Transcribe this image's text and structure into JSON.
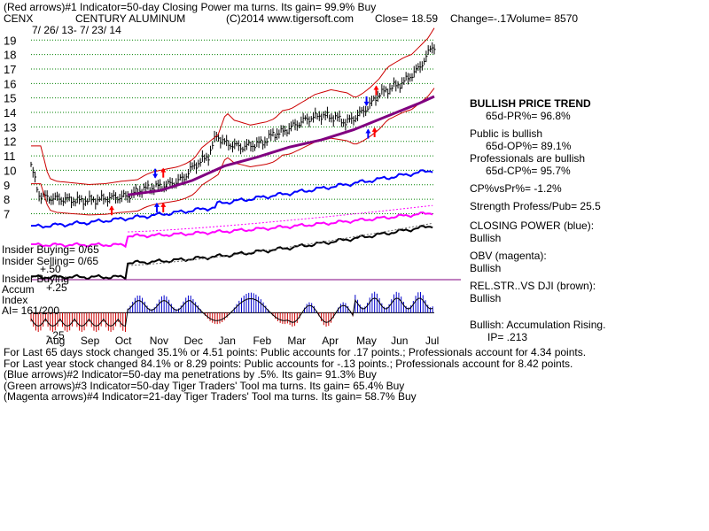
{
  "header": {
    "line1": "(Red arrows)#1 Indicator=50-day Closing Power ma turns. Its gain= 99.9% Buy",
    "ticker": "CENX",
    "company": "CENTURY ALUMINUM",
    "copyright": "(C)2014 www.tigersoft.com",
    "close": "Close=  18.59",
    "change": "Change=-.17",
    "volume": "Volume= 8570",
    "date_range": "7/ 26/ 13-  7/ 23/ 14"
  },
  "labels": {
    "insider_buying": "Insider Buying= 0/65",
    "insider_selling": "Insider Selling= 0/65",
    "insider_buying2": "Insider Buying",
    "accum": "Accum",
    "index": "Index",
    "ai": "AI= 161/200",
    "acc_top": "+.50",
    "acc_mid": "+.25",
    "acc_bot": "-.25"
  },
  "panel": {
    "trend_title": "BULLISH PRICE TREND",
    "trend_val": "65d-PR%= 96.8%",
    "public_title": "Public is bullish",
    "public_val": "65d-OP%= 89.1%",
    "pro_title": "Professionals are bullish",
    "pro_val": "65d-CP%= 95.7%",
    "cpvs": "CP%vsPr%= -1.2%",
    "strength": "Strength Profess/Pub= 25.5",
    "cp_title": "CLOSING POWER (blue):",
    "cp_val": "Bullish",
    "obv_title": "OBV (magenta):",
    "obv_val": "Bullish",
    "rel_title": "REL.STR..VS DJI (brown):",
    "rel_val": "Bullish",
    "accum_title": "Bullish: Accumulation Rising.",
    "ip": "IP=  .213"
  },
  "footer": [
    "For Last 65 days stock changed  35.1% or  4.51 points:  Public accounts for  .17 points.;  Professionals account for  4.34 points.",
    "For Last year stock changed  84.1% or  8.29 points:  Public accounts for -.13 points.;  Professionals account for  8.42 points.",
    "(Blue arrows)#2 Indicator=50-day ma penetrations by .5%. Its gain= 91.3% Buy",
    "(Green arrows)#3 Indicator=50-day Tiger Traders' Tool ma turns. Its gain= 65.4% Buy",
    "(Magenta arrows)#4 Indicator=21-day Tiger Traders' Tool ma turns. Its gain= 58.7% Buy"
  ],
  "colors": {
    "price": "#000000",
    "bands": "#cc0000",
    "ma": "#800080",
    "closing_power": "#0000ff",
    "obv": "#ff00ff",
    "rel_str": "#000000",
    "accum_pos": "#0000cc",
    "accum_neg": "#cc0000",
    "grid": "#008000",
    "divider": "#800080"
  },
  "chart_data": {
    "type": "line",
    "title": "CENTURY ALUMINUM",
    "x_tick_labels": [
      "Aug",
      "Sep",
      "Oct",
      "Nov",
      "Dec",
      "Jan",
      "Feb",
      "Mar",
      "Apr",
      "May",
      "Jun",
      "Jul"
    ],
    "y_ticks": [
      7,
      8,
      9,
      10,
      11,
      12,
      13,
      14,
      15,
      16,
      17,
      18,
      19
    ],
    "ylim": [
      6.6,
      19.2
    ],
    "price_series": {
      "x": [
        0,
        5,
        10,
        20,
        30,
        40,
        50,
        60,
        65,
        70,
        75,
        80,
        85,
        90,
        95,
        100,
        110,
        115,
        120,
        130,
        140,
        145,
        150,
        155,
        160,
        165,
        170,
        180,
        190,
        195,
        200,
        205,
        210,
        215,
        220,
        225,
        230,
        235,
        240,
        245,
        248,
        250
      ],
      "y": [
        10.3,
        8.3,
        8.1,
        8.0,
        7.9,
        7.95,
        8.1,
        8.2,
        8.5,
        8.7,
        8.8,
        8.9,
        9.0,
        9.2,
        9.5,
        10.2,
        11.0,
        12.4,
        11.9,
        11.6,
        11.8,
        12.0,
        12.5,
        12.6,
        12.9,
        13.2,
        13.5,
        13.8,
        13.6,
        13.3,
        13.6,
        14.0,
        14.5,
        15.2,
        15.5,
        15.8,
        16.0,
        16.5,
        17.0,
        17.8,
        18.5,
        18.59
      ]
    },
    "ma50": {
      "x": [
        60,
        80,
        100,
        120,
        140,
        160,
        180,
        200,
        220,
        240,
        250
      ],
      "y": [
        8.3,
        8.6,
        9.3,
        10.3,
        10.9,
        11.6,
        12.1,
        12.8,
        13.7,
        14.6,
        15.1
      ]
    },
    "arrows": [
      {
        "x": 50,
        "y": 7.2,
        "dir": "up",
        "color": "red"
      },
      {
        "x": 77,
        "y": 9.8,
        "dir": "down",
        "color": "blue"
      },
      {
        "x": 78,
        "y": 7.4,
        "dir": "up",
        "color": "blue"
      },
      {
        "x": 82,
        "y": 9.8,
        "dir": "up",
        "color": "red"
      },
      {
        "x": 82,
        "y": 7.4,
        "dir": "up",
        "color": "red"
      },
      {
        "x": 208,
        "y": 14.8,
        "dir": "down",
        "color": "blue"
      },
      {
        "x": 209,
        "y": 12.5,
        "dir": "up",
        "color": "blue"
      },
      {
        "x": 213,
        "y": 12.6,
        "dir": "up",
        "color": "red"
      },
      {
        "x": 214,
        "y": 15.5,
        "dir": "up",
        "color": "red"
      }
    ],
    "accumulation_index": {
      "ylim": [
        -0.25,
        0.5
      ],
      "note_levels": [
        0.5,
        0.25,
        -0.25
      ]
    }
  }
}
